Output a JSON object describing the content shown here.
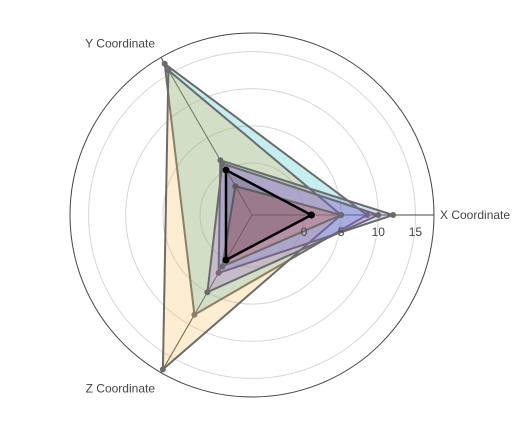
{
  "chart_data": {
    "type": "radar",
    "axes": [
      "X Coordinate",
      "Y Coordinate",
      "Z Coordinate"
    ],
    "radial_range": [
      -7,
      17.5
    ],
    "radial_ticks": [
      0,
      5,
      10,
      15
    ],
    "grid": true,
    "series": [
      {
        "values": [
          8.5,
          16.5,
          8.5
        ],
        "color": "#1ab6be"
      },
      {
        "values": [
          5,
          15.5,
          17
        ],
        "color": "#f7b84b"
      },
      {
        "values": [
          12,
          1.5,
          2
        ],
        "color": "#5e6dd8"
      },
      {
        "values": [
          10,
          1,
          5
        ],
        "color": "#9b55c9"
      },
      {
        "values": [
          5,
          -2.5,
          1
        ],
        "color": "#d0513a"
      },
      {
        "values": [
          1,
          0,
          0
        ],
        "color": "#000000"
      }
    ]
  }
}
